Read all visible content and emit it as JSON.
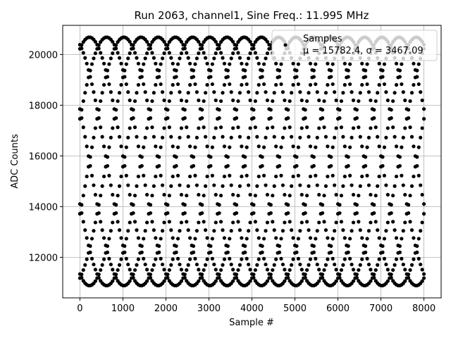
{
  "chart_data": {
    "type": "scatter",
    "title": "Run 2063, channel1, Sine Freq.: 11.995 MHz",
    "xlabel": "Sample #",
    "ylabel": "ADC Counts",
    "xlim": [
      -400,
      8400
    ],
    "ylim": [
      10400,
      21150
    ],
    "xticks": [
      0,
      1000,
      2000,
      3000,
      4000,
      5000,
      6000,
      7000,
      8000
    ],
    "yticks": [
      12000,
      14000,
      16000,
      18000,
      20000
    ],
    "grid": true,
    "legend": {
      "position": "top-right",
      "title": "Samples",
      "entry": "μ = 15782.4, σ = 3467.09"
    },
    "series": [
      {
        "name": "Samples",
        "marker": "circle",
        "color": "#000000",
        "mean": 15782.4,
        "std": 3467.09,
        "amplitude": 4900,
        "offset": 15782.4,
        "period_samples": 3200,
        "n_traces": 8,
        "x_range": [
          0,
          8000
        ]
      }
    ]
  }
}
